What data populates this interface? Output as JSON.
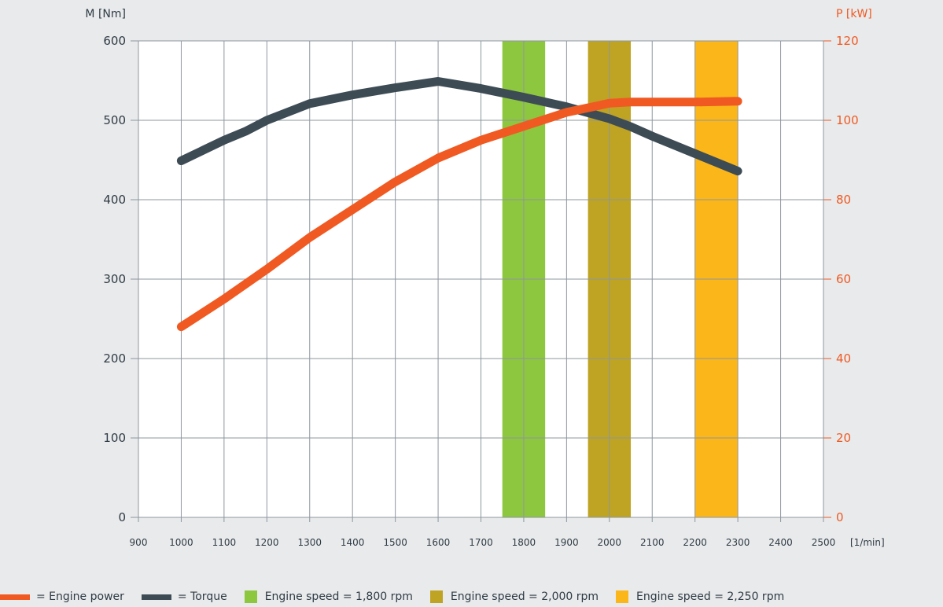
{
  "chart_data": {
    "type": "line",
    "left_axis": {
      "label": "M [Nm]",
      "ylim": [
        0,
        600
      ],
      "ticks": [
        0,
        100,
        200,
        300,
        400,
        500,
        600
      ],
      "tick_labels": [
        "0",
        "100",
        "200",
        "300",
        "400",
        "500",
        "600"
      ],
      "color": "#2f3b44"
    },
    "right_axis": {
      "label": "P [kW]",
      "ylim": [
        0,
        120
      ],
      "ticks": [
        0,
        20,
        40,
        60,
        80,
        100,
        120
      ],
      "tick_labels": [
        "0",
        "20",
        "40",
        "60",
        "80",
        "100",
        "120"
      ],
      "color": "#f05a22"
    },
    "x_axis": {
      "label": "[1/min]",
      "xlim": [
        900,
        2500
      ],
      "ticks": [
        900,
        1000,
        1100,
        1200,
        1300,
        1400,
        1500,
        1600,
        1700,
        1800,
        1900,
        2000,
        2100,
        2200,
        2300,
        2400,
        2500
      ],
      "tick_labels": [
        "900",
        "1000",
        "1100",
        "1200",
        "1300",
        "1400",
        "1500",
        "1600",
        "1700",
        "1800",
        "1900",
        "2000",
        "2100",
        "2200",
        "2300",
        "2400",
        "2500"
      ]
    },
    "grid": true,
    "bands": [
      {
        "name": "Engine speed = 1,800 rpm",
        "x_range": [
          1750,
          1850
        ],
        "color": "#8dc63f"
      },
      {
        "name": "Engine speed = 2,000 rpm",
        "x_range": [
          1950,
          2050
        ],
        "color": "#bfa323"
      },
      {
        "name": "Engine speed = 2,250 rpm",
        "x_range": [
          2200,
          2300
        ],
        "color": "#fbb61a"
      }
    ],
    "series": [
      {
        "name": "Engine power",
        "axis": "right",
        "color": "#f05a22",
        "x": [
          1000,
          1100,
          1200,
          1300,
          1400,
          1500,
          1600,
          1700,
          1800,
          1900,
          2000,
          2050,
          2100,
          2200,
          2300
        ],
        "values": [
          48,
          55,
          62.5,
          70.5,
          77.5,
          84.5,
          90.5,
          95,
          98.5,
          102,
          104.3,
          104.6,
          104.6,
          104.6,
          104.8
        ]
      },
      {
        "name": "Torque",
        "axis": "left",
        "color": "#3d4b55",
        "x": [
          1000,
          1100,
          1150,
          1200,
          1300,
          1400,
          1500,
          1600,
          1700,
          1800,
          1900,
          2000,
          2050,
          2100,
          2200,
          2300
        ],
        "values": [
          449,
          475,
          486,
          500,
          521,
          532,
          541,
          549,
          540,
          529,
          517,
          502,
          492,
          480,
          458,
          436
        ]
      }
    ]
  },
  "legend": [
    {
      "label": "= Engine power",
      "swatch": "line",
      "color": "#f05a22"
    },
    {
      "label": "= Torque",
      "swatch": "line",
      "color": "#3d4b55"
    },
    {
      "label": "Engine speed = 1,800 rpm",
      "swatch": "box",
      "color": "#8dc63f"
    },
    {
      "label": "Engine speed = 2,000 rpm",
      "swatch": "box",
      "color": "#bfa323"
    },
    {
      "label": "Engine speed = 2,250 rpm",
      "swatch": "box",
      "color": "#fbb61a"
    }
  ]
}
